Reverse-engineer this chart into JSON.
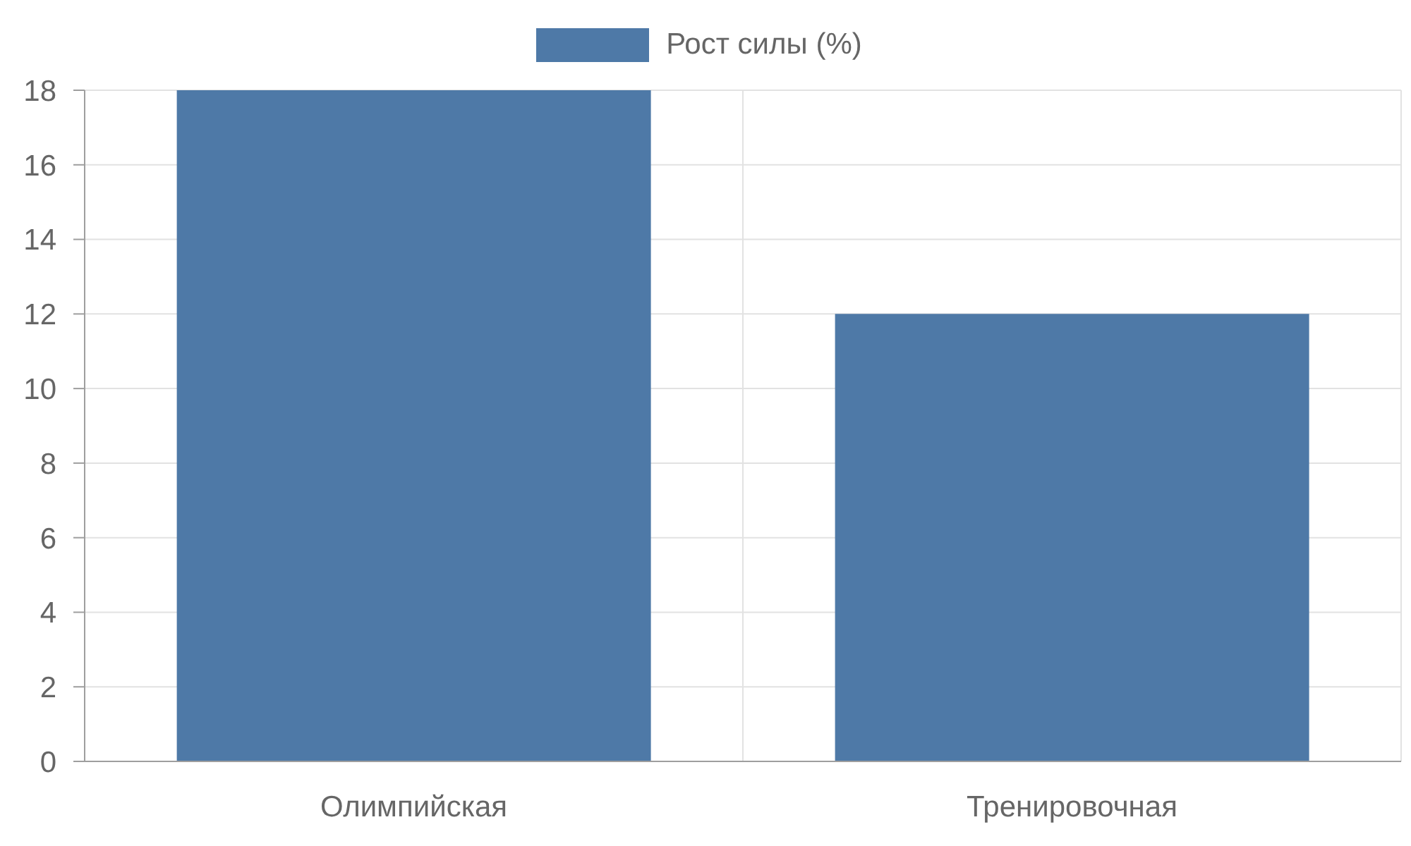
{
  "chart_data": {
    "type": "bar",
    "categories": [
      "Олимпийская",
      "Тренировочная"
    ],
    "series": [
      {
        "name": "Рост силы (%)",
        "color": "#4e79a7",
        "values": [
          18,
          12
        ]
      }
    ],
    "ylim": [
      0,
      18
    ],
    "yticks": [
      0,
      2,
      4,
      6,
      8,
      10,
      12,
      14,
      16,
      18
    ],
    "grid": true,
    "legend": "top"
  }
}
